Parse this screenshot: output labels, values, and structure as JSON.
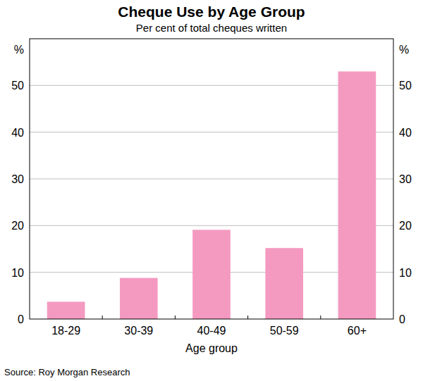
{
  "chart_data": {
    "type": "bar",
    "title": "Cheque Use by Age Group",
    "subtitle": "Per cent of total cheques written",
    "categories": [
      "18-29",
      "30-39",
      "40-49",
      "50-59",
      "60+"
    ],
    "values": [
      3.7,
      8.8,
      19.1,
      15.2,
      53
    ],
    "color": "#f49ac1",
    "ylim": [
      0,
      60
    ],
    "yticks": [
      0,
      10,
      20,
      30,
      40,
      50
    ],
    "grid": true,
    "x_label": "Age group",
    "y_label": "%",
    "source": "Source: Roy Morgan Research"
  }
}
